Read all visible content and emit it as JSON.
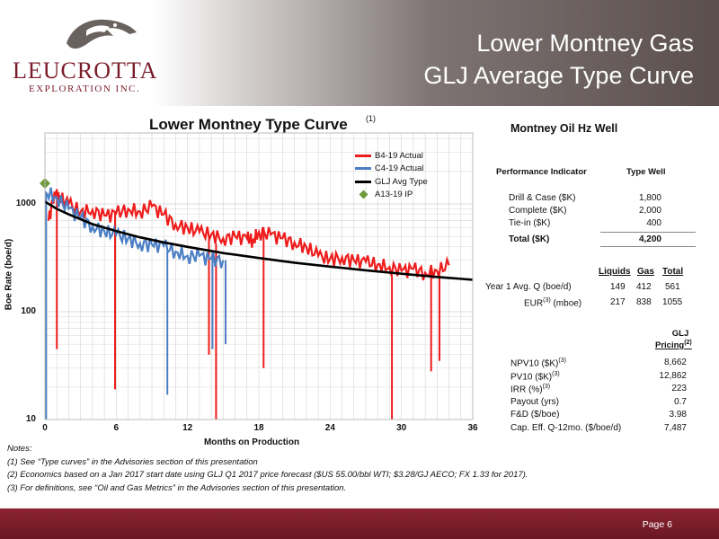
{
  "header": {
    "logo_word": "LEUCROTTA",
    "logo_sub": "EXPLORATION INC.",
    "title_line1": "Lower Montney Gas",
    "title_line2": "GLJ Average Type Curve"
  },
  "chart_data": {
    "type": "line",
    "title": "Lower Montney Type Curve",
    "title_note": "(1)",
    "xlabel": "Months on Production",
    "ylabel": "Boe Rate (boe/d)",
    "xlim": [
      0,
      36
    ],
    "ylim": [
      10,
      2000
    ],
    "yscale": "log",
    "x_ticks": [
      "0",
      "6",
      "12",
      "18",
      "24",
      "30",
      "36"
    ],
    "y_ticks": [
      "10",
      "100",
      "1000"
    ],
    "grid": true,
    "legend_position": "top-right",
    "series": [
      {
        "name": "B4-19 Actual",
        "color": "#ee1c1c",
        "points": [
          [
            0.3,
            700
          ],
          [
            0.8,
            1300
          ],
          [
            1.2,
            1150
          ],
          [
            2,
            1000
          ],
          [
            3,
            850
          ],
          [
            4,
            880
          ],
          [
            5,
            780
          ],
          [
            6,
            820
          ],
          [
            7,
            900
          ],
          [
            8,
            850
          ],
          [
            9,
            950
          ],
          [
            10,
            800
          ],
          [
            11,
            650
          ],
          [
            12,
            600
          ],
          [
            13,
            550
          ],
          [
            14,
            520
          ],
          [
            15,
            480
          ],
          [
            16,
            500
          ],
          [
            17,
            480
          ],
          [
            17.5,
            460
          ],
          [
            18,
            550
          ],
          [
            19,
            520
          ],
          [
            20,
            480
          ],
          [
            21,
            440
          ],
          [
            22,
            400
          ],
          [
            23,
            330
          ],
          [
            24,
            310
          ],
          [
            25,
            320
          ],
          [
            26,
            300
          ],
          [
            27,
            290
          ],
          [
            28,
            275
          ],
          [
            29,
            260
          ],
          [
            30,
            240
          ],
          [
            31,
            250
          ],
          [
            32,
            230
          ],
          [
            33,
            240
          ],
          [
            34,
            270
          ]
        ],
        "dips": [
          [
            1,
            45
          ],
          [
            5.9,
            19
          ],
          [
            13.8,
            40
          ],
          [
            14.4,
            10
          ],
          [
            18.4,
            30
          ],
          [
            29.2,
            10
          ],
          [
            32.5,
            28
          ],
          [
            33.2,
            35
          ]
        ]
      },
      {
        "name": "C4-19 Actual",
        "color": "#4a7ec4",
        "points": [
          [
            0,
            1300
          ],
          [
            1,
            1150
          ],
          [
            2,
            900
          ],
          [
            3,
            750
          ],
          [
            4,
            620
          ],
          [
            5,
            560
          ],
          [
            6,
            520
          ],
          [
            7,
            480
          ],
          [
            8,
            430
          ],
          [
            9,
            420
          ],
          [
            10,
            410
          ],
          [
            11,
            360
          ],
          [
            12,
            330
          ],
          [
            13,
            330
          ],
          [
            14,
            310
          ],
          [
            15,
            300
          ]
        ],
        "dips": [
          [
            0.1,
            10
          ],
          [
            10.3,
            17
          ],
          [
            14.1,
            45
          ],
          [
            15.2,
            50
          ]
        ]
      },
      {
        "name": "GLJ Avg Type",
        "color": "#000000",
        "points": [
          [
            0,
            1050
          ],
          [
            1,
            900
          ],
          [
            2,
            800
          ],
          [
            3,
            720
          ],
          [
            4,
            650
          ],
          [
            6,
            560
          ],
          [
            8,
            490
          ],
          [
            10,
            440
          ],
          [
            12,
            400
          ],
          [
            15,
            350
          ],
          [
            18,
            315
          ],
          [
            21,
            285
          ],
          [
            24,
            262
          ],
          [
            27,
            242
          ],
          [
            30,
            225
          ],
          [
            33,
            210
          ],
          [
            36,
            198
          ]
        ]
      },
      {
        "name": "A13-19 IP",
        "color": "#6e9a3c",
        "marker": "diamond",
        "points": [
          [
            0,
            1550
          ]
        ]
      }
    ]
  },
  "right_panel": {
    "title": "Montney Oil Hz Well",
    "perf_header": "Performance Indicator",
    "type_well_header": "Type Well",
    "costs": [
      {
        "label": "Drill & Case ($K)",
        "value": "1,800"
      },
      {
        "label": "Complete ($K)",
        "value": "2,000"
      },
      {
        "label": "Tie-in ($K)",
        "value": "400"
      }
    ],
    "total": {
      "label": "Total ($K)",
      "value": "4,200"
    },
    "prod_headers": [
      "Liquids",
      "Gas",
      "Total"
    ],
    "prod_rows": [
      {
        "label": "Year 1 Avg. Q (boe/d)",
        "sup": "",
        "values": [
          "149",
          "412",
          "561"
        ]
      },
      {
        "label": "EUR",
        "sup": "(3)",
        "suffix": " (mboe)",
        "values": [
          "217",
          "838",
          "1055"
        ]
      }
    ],
    "glj_header_line1": "GLJ",
    "glj_header_line2": "Pricing",
    "glj_header_sup": "(2)",
    "econ": [
      {
        "label": "NPV10 ($K)",
        "sup": "(3)",
        "value": "8,662"
      },
      {
        "label": "PV10 ($K)",
        "sup": "(3)",
        "value": "12,862"
      },
      {
        "label": "IRR (%)",
        "sup": "(3)",
        "value": "223"
      },
      {
        "label": "Payout (yrs)",
        "sup": "",
        "value": "0.7"
      },
      {
        "label": "F&D ($/boe)",
        "sup": "",
        "value": "3.98"
      },
      {
        "label": "Cap. Eff. Q-12mo. ($/boe/d)",
        "sup": "",
        "value": "7,487"
      }
    ]
  },
  "notes": {
    "title": "Notes:",
    "items": [
      "(1)  See “Type curves” in the Advisories section of this presentation",
      "(2)  Economics based on a Jan 2017 start date using GLJ Q1 2017 price forecast ($US 55.00/bbl WTI; $3.28/GJ AECO; FX 1.33 for 2017).",
      "(3)  For definitions, see “Oil and Gas Metrics” in the Advisories section of this presentation."
    ]
  },
  "footer": {
    "page": "Page 6"
  }
}
